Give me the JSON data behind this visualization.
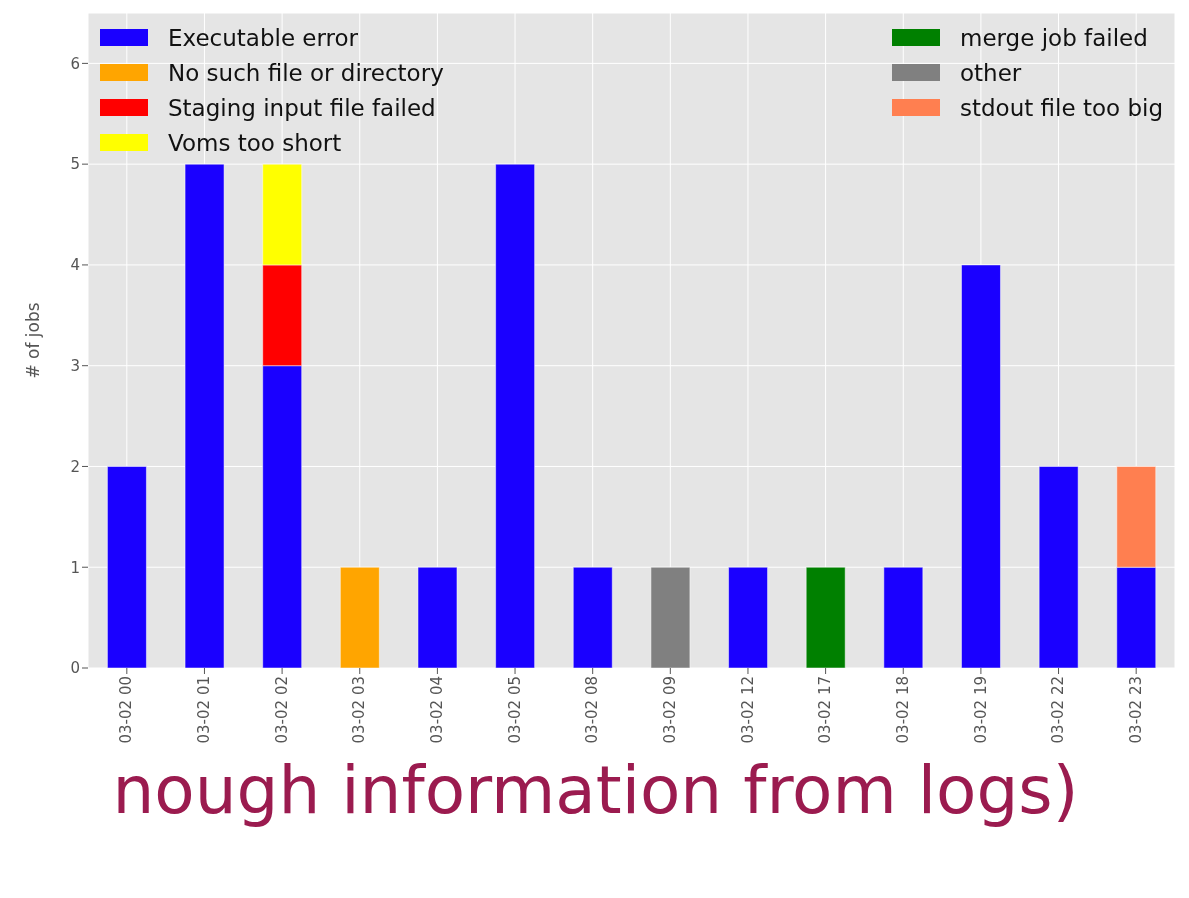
{
  "chart_data": {
    "type": "bar",
    "stacked": true,
    "ylabel": "# of jobs",
    "categories": [
      "03-02 00",
      "03-02 01",
      "03-02 02",
      "03-02 03",
      "03-02 04",
      "03-02 05",
      "03-02 08",
      "03-02 09",
      "03-02 12",
      "03-02 17",
      "03-02 18",
      "03-02 19",
      "03-02 22",
      "03-02 23"
    ],
    "series": [
      {
        "name": "Executable error",
        "color": "#1a00ff",
        "values": [
          2,
          5,
          3,
          0,
          1,
          5,
          1,
          0,
          1,
          0,
          1,
          4,
          2,
          1
        ]
      },
      {
        "name": "No such file or directory",
        "color": "#ffa500",
        "values": [
          0,
          0,
          0,
          1,
          0,
          0,
          0,
          0,
          0,
          0,
          0,
          0,
          0,
          0
        ]
      },
      {
        "name": "Staging input file failed",
        "color": "#ff0000",
        "values": [
          0,
          0,
          1,
          0,
          0,
          0,
          0,
          0,
          0,
          0,
          0,
          0,
          0,
          0
        ]
      },
      {
        "name": "Voms too short",
        "color": "#ffff00",
        "values": [
          0,
          0,
          1,
          0,
          0,
          0,
          0,
          0,
          0,
          0,
          0,
          0,
          0,
          0
        ]
      },
      {
        "name": "merge job failed",
        "color": "#008000",
        "values": [
          0,
          0,
          0,
          0,
          0,
          0,
          0,
          0,
          0,
          1,
          0,
          0,
          0,
          0
        ]
      },
      {
        "name": "other",
        "color": "#808080",
        "values": [
          0,
          0,
          0,
          0,
          0,
          0,
          0,
          1,
          0,
          0,
          0,
          0,
          0,
          0
        ]
      },
      {
        "name": "stdout file too big",
        "color": "#ff7f50",
        "values": [
          0,
          0,
          0,
          0,
          0,
          0,
          0,
          0,
          0,
          0,
          0,
          0,
          0,
          1
        ]
      }
    ],
    "ylim": [
      0,
      6.5
    ],
    "yticks": [
      0,
      1,
      2,
      3,
      4,
      5,
      6
    ],
    "grid": true,
    "legend": "top",
    "annotations": [
      "nough information from logs)"
    ]
  }
}
